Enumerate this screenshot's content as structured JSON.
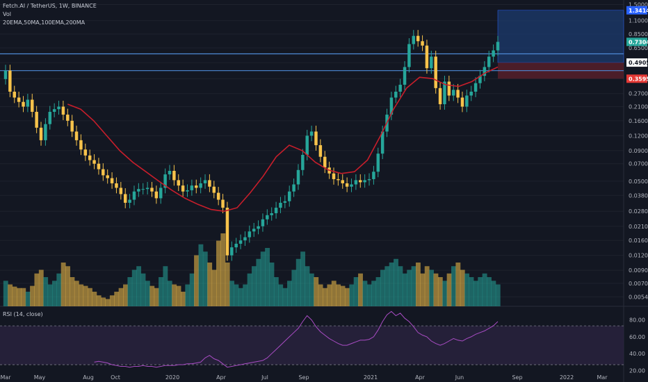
{
  "legend": {
    "symbol": "Fetch.AI / TetherUS, 1W, BINANCE",
    "volume": "Vol",
    "indicators": "20EMA,50MA,100EMA,200MA"
  },
  "rsi_label": "RSI (14, close)",
  "colors": {
    "background": "#131722",
    "up": "#26a69a",
    "down": "#f7c34b",
    "ema": "#c81e2b",
    "rsi": "#a94cc4",
    "rsi_band": "#2a2340",
    "level_line": "#4e8ad6",
    "target_zone": "#1c3b6e",
    "stop_zone": "#5a1f2a"
  },
  "chart_data": [
    {
      "type": "candlestick",
      "title": "Fetch.AI / TetherUS, 1W, BINANCE",
      "scale": "log",
      "ylim": [
        0.0045,
        1.55
      ],
      "price_ticks": [
        "1.5000",
        "1.1000",
        "0.8500",
        "0.6500",
        "0.4900",
        "0.3600",
        "0.2700",
        "0.2100",
        "0.1600",
        "0.1200",
        "0.0900",
        "0.0700",
        "0.0500",
        "0.0380",
        "0.0280",
        "0.0210",
        "0.0160",
        "0.0120",
        "0.0090",
        "0.0070",
        "0.0054"
      ],
      "time_ticks": [
        "Mar",
        "May",
        "Aug",
        "Oct",
        "2020",
        "Apr",
        "Jul",
        "Sep",
        "2021",
        "Apr",
        "Jun",
        "Sep",
        "2022",
        "Mar"
      ],
      "price_labels": [
        {
          "text": "1.3414",
          "value": 1.3414,
          "color": "#2962ff"
        },
        {
          "text": "0.7304",
          "value": 0.7304,
          "color": "#26a69a"
        },
        {
          "text": "0.4905",
          "value": 0.4905,
          "color": "#131722"
        },
        {
          "text": "0.3595",
          "value": 0.3595,
          "color": "#e53935"
        }
      ],
      "horizontal_levels": [
        0.58,
        0.42
      ],
      "target_zone": [
        0.4905,
        1.3414
      ],
      "stop_zone": [
        0.3595,
        0.4905
      ],
      "closes": [
        0.42,
        0.28,
        0.25,
        0.23,
        0.21,
        0.24,
        0.19,
        0.14,
        0.11,
        0.15,
        0.19,
        0.2,
        0.21,
        0.18,
        0.16,
        0.13,
        0.11,
        0.092,
        0.082,
        0.075,
        0.07,
        0.063,
        0.056,
        0.053,
        0.048,
        0.044,
        0.039,
        0.033,
        0.035,
        0.041,
        0.043,
        0.043,
        0.044,
        0.041,
        0.036,
        0.044,
        0.057,
        0.061,
        0.051,
        0.046,
        0.041,
        0.042,
        0.046,
        0.044,
        0.048,
        0.051,
        0.045,
        0.04,
        0.035,
        0.03,
        0.012,
        0.014,
        0.015,
        0.016,
        0.017,
        0.019,
        0.02,
        0.021,
        0.024,
        0.026,
        0.027,
        0.03,
        0.033,
        0.034,
        0.041,
        0.047,
        0.062,
        0.083,
        0.12,
        0.13,
        0.1,
        0.08,
        0.065,
        0.058,
        0.052,
        0.051,
        0.048,
        0.045,
        0.047,
        0.051,
        0.049,
        0.051,
        0.052,
        0.06,
        0.085,
        0.13,
        0.18,
        0.25,
        0.28,
        0.32,
        0.45,
        0.7,
        0.82,
        0.74,
        0.68,
        0.44,
        0.55,
        0.3,
        0.22,
        0.34,
        0.26,
        0.29,
        0.25,
        0.21,
        0.26,
        0.28,
        0.33,
        0.38,
        0.45,
        0.55,
        0.62,
        0.7304
      ],
      "ema_20": {
        "start_index": 14,
        "values": [
          0.22,
          0.2,
          0.16,
          0.12,
          0.09,
          0.072,
          0.06,
          0.05,
          0.042,
          0.036,
          0.032,
          0.029,
          0.028,
          0.03,
          0.04,
          0.055,
          0.08,
          0.1,
          0.09,
          0.072,
          0.062,
          0.058,
          0.06,
          0.075,
          0.12,
          0.2,
          0.3,
          0.37,
          0.36,
          0.32,
          0.31,
          0.34,
          0.4,
          0.45
        ]
      },
      "volume_note": "weekly volume area, up = teal, down = yellow",
      "volumes": [
        0.35,
        0.3,
        0.27,
        0.25,
        0.25,
        0.2,
        0.28,
        0.45,
        0.5,
        0.4,
        0.3,
        0.35,
        0.45,
        0.6,
        0.55,
        0.4,
        0.35,
        0.3,
        0.28,
        0.25,
        0.2,
        0.15,
        0.12,
        0.1,
        0.15,
        0.2,
        0.25,
        0.3,
        0.4,
        0.5,
        0.55,
        0.45,
        0.35,
        0.28,
        0.25,
        0.4,
        0.55,
        0.35,
        0.3,
        0.28,
        0.2,
        0.3,
        0.45,
        0.7,
        0.85,
        0.75,
        0.6,
        0.5,
        0.9,
        1.0,
        0.6,
        0.35,
        0.3,
        0.25,
        0.3,
        0.45,
        0.55,
        0.65,
        0.75,
        0.8,
        0.6,
        0.4,
        0.3,
        0.25,
        0.35,
        0.5,
        0.65,
        0.75,
        0.55,
        0.45,
        0.4,
        0.3,
        0.25,
        0.3,
        0.35,
        0.3,
        0.28,
        0.25,
        0.3,
        0.4,
        0.45,
        0.35,
        0.3,
        0.35,
        0.4,
        0.5,
        0.55,
        0.6,
        0.65,
        0.55,
        0.45,
        0.5,
        0.55,
        0.6,
        0.45,
        0.55,
        0.5,
        0.45,
        0.4,
        0.35,
        0.45,
        0.55,
        0.6,
        0.5,
        0.45,
        0.4,
        0.35,
        0.4,
        0.45,
        0.4,
        0.35,
        0.3
      ]
    },
    {
      "type": "line",
      "title": "RSI (14, close)",
      "ylim": [
        18,
        92
      ],
      "y_ticks": [
        "80.00",
        "60.00",
        "40.00",
        "20.00"
      ],
      "bands": [
        73,
        27
      ],
      "values": [
        null,
        null,
        null,
        null,
        null,
        null,
        null,
        null,
        null,
        null,
        null,
        null,
        null,
        null,
        null,
        null,
        null,
        null,
        null,
        null,
        30,
        31,
        30,
        29,
        27,
        26,
        25,
        25,
        24,
        25,
        25,
        26,
        25,
        25,
        24,
        25,
        26,
        26,
        26,
        27,
        27,
        28,
        28,
        29,
        30,
        35,
        38,
        34,
        32,
        28,
        24,
        25,
        26,
        27,
        28,
        29,
        30,
        31,
        32,
        35,
        40,
        45,
        50,
        55,
        60,
        65,
        70,
        78,
        85,
        80,
        72,
        66,
        62,
        58,
        55,
        52,
        50,
        50,
        52,
        54,
        56,
        56,
        57,
        60,
        68,
        78,
        86,
        90,
        85,
        88,
        82,
        78,
        72,
        65,
        62,
        60,
        55,
        52,
        50,
        52,
        55,
        58,
        56,
        55,
        58,
        60,
        63,
        65,
        67,
        70,
        73,
        78
      ]
    }
  ]
}
